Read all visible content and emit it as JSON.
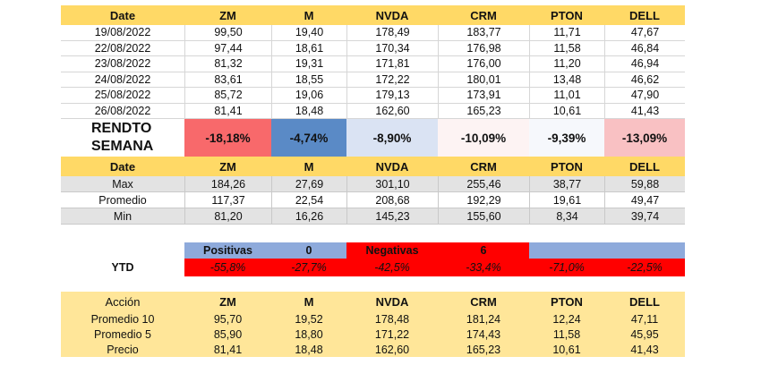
{
  "header": {
    "columns": [
      "Date",
      "ZM",
      "M",
      "NVDA",
      "CRM",
      "PTON",
      "DELL"
    ]
  },
  "prices": [
    {
      "date": "19/08/2022",
      "values": [
        "99,50",
        "19,40",
        "178,49",
        "183,77",
        "11,71",
        "47,67"
      ]
    },
    {
      "date": "22/08/2022",
      "values": [
        "97,44",
        "18,61",
        "170,34",
        "176,98",
        "11,58",
        "46,84"
      ]
    },
    {
      "date": "23/08/2022",
      "values": [
        "81,32",
        "19,31",
        "171,81",
        "176,00",
        "11,20",
        "46,94"
      ]
    },
    {
      "date": "24/08/2022",
      "values": [
        "83,61",
        "18,55",
        "172,22",
        "180,01",
        "13,48",
        "46,62"
      ]
    },
    {
      "date": "25/08/2022",
      "values": [
        "85,72",
        "19,06",
        "179,13",
        "173,91",
        "11,01",
        "47,90"
      ]
    },
    {
      "date": "26/08/2022",
      "values": [
        "81,41",
        "18,48",
        "162,60",
        "165,23",
        "10,61",
        "41,43"
      ]
    }
  ],
  "rendto": {
    "label_line1": "RENDTO",
    "label_line2": "SEMANA",
    "values": [
      "-18,18%",
      "-4,74%",
      "-8,90%",
      "-10,09%",
      "-9,39%",
      "-13,09%"
    ],
    "colors": [
      "#f8696b",
      "#5a8ac6",
      "#dae3f3",
      "#fdf3f3",
      "#f6f8fc",
      "#f9c1c3"
    ]
  },
  "stats_header": {
    "columns": [
      "Date",
      "ZM",
      "M",
      "NVDA",
      "CRM",
      "PTON",
      "DELL"
    ]
  },
  "stats": [
    {
      "label": "Max",
      "values": [
        "184,26",
        "27,69",
        "301,10",
        "255,46",
        "38,77",
        "59,88"
      ]
    },
    {
      "label": "Promedio",
      "values": [
        "117,37",
        "22,54",
        "208,68",
        "192,29",
        "19,61",
        "49,47"
      ]
    },
    {
      "label": "Min",
      "values": [
        "81,20",
        "16,26",
        "145,23",
        "155,60",
        "8,34",
        "39,74"
      ]
    }
  ],
  "counts": {
    "positivas_label": "Positivas",
    "positivas_value": "0",
    "negativas_label": "Negativas",
    "negativas_value": "6",
    "blue": "#8eaadb",
    "red": "#ff0000"
  },
  "ytd": {
    "label": "YTD",
    "values": [
      "-55,8%",
      "-27,7%",
      "-42,5%",
      "-33,4%",
      "-71,0%",
      "-22,5%"
    ]
  },
  "averages": {
    "columns": [
      "Acción",
      "ZM",
      "M",
      "NVDA",
      "CRM",
      "PTON",
      "DELL"
    ],
    "rows": [
      {
        "label": "Promedio 10",
        "values": [
          "95,70",
          "19,52",
          "178,48",
          "181,24",
          "12,24",
          "47,11"
        ]
      },
      {
        "label": "Promedio 5",
        "values": [
          "85,90",
          "18,80",
          "171,22",
          "174,43",
          "11,58",
          "45,95"
        ]
      },
      {
        "label": "Precio",
        "values": [
          "81,41",
          "18,48",
          "162,60",
          "165,23",
          "10,61",
          "41,43"
        ]
      }
    ]
  }
}
